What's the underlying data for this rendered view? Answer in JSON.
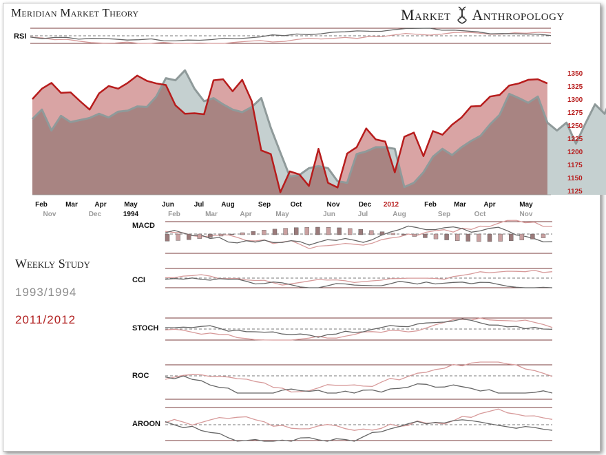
{
  "header": {
    "title": "Meridian Market Theory",
    "brand_left": "Market",
    "brand_right": "Anthropology"
  },
  "legend": {
    "title": "Weekly Study",
    "series_a": "1993/1994",
    "series_b": "2011/2012"
  },
  "colors": {
    "red": "#b71c1c",
    "red_fill": "#d9a4a4",
    "gray": "#8f9a9a",
    "gray_fill": "#c5d0d0",
    "dark_fill": "#a88482"
  },
  "chart_data": {
    "type": "area",
    "title": "Meridian Market Theory",
    "ylim": [
      1110,
      1365
    ],
    "y_ticks": [
      1125,
      1150,
      1175,
      1200,
      1225,
      1250,
      1275,
      1300,
      1325,
      1350
    ],
    "x_labels_2012": [
      "Feb",
      "Mar",
      "Apr",
      "May",
      "Jun",
      "Jul",
      "Aug",
      "Sep",
      "Oct",
      "Nov",
      "Dec",
      "2012",
      "Feb",
      "Mar",
      "Apr",
      "May"
    ],
    "x_labels_1994": [
      "Nov",
      "Dec",
      "1994",
      "Feb",
      "Mar",
      "Apr",
      "May",
      "Jun",
      "Jul",
      "Aug",
      "Sep",
      "Oct",
      "Nov"
    ],
    "series": [
      {
        "name": "2011/2012",
        "values": [
          1300,
          1320,
          1331,
          1312,
          1313,
          1296,
          1280,
          1311,
          1325,
          1320,
          1331,
          1345,
          1335,
          1330,
          1327,
          1288,
          1272,
          1273,
          1271,
          1336,
          1338,
          1315,
          1337,
          1296,
          1202,
          1195,
          1122,
          1162,
          1156,
          1134,
          1205,
          1140,
          1131,
          1196,
          1208,
          1244,
          1223,
          1219,
          1160,
          1228,
          1236,
          1191,
          1239,
          1232,
          1251,
          1265,
          1286,
          1287,
          1305,
          1308,
          1326,
          1330,
          1337,
          1338,
          1330
        ]
      },
      {
        "name": "1993/1994",
        "values": [
          1262,
          1280,
          1240,
          1268,
          1256,
          1260,
          1264,
          1272,
          1265,
          1276,
          1278,
          1286,
          1285,
          1305,
          1340,
          1336,
          1355,
          1320,
          1296,
          1302,
          1290,
          1280,
          1275,
          1285,
          1302,
          1245,
          1198,
          1152,
          1155,
          1168,
          1172,
          1168,
          1143,
          1140,
          1195,
          1200,
          1208,
          1208,
          1205,
          1132,
          1140,
          1160,
          1190,
          1205,
          1193,
          1208,
          1220,
          1230,
          1252,
          1270,
          1310,
          1302,
          1293,
          1305,
          1255,
          1240,
          1255,
          1215,
          1254,
          1290,
          1272,
          1318,
          1270,
          1258,
          1258,
          1255,
          1190,
          1168
        ]
      }
    ],
    "indicators": [
      "RSI",
      "MACD",
      "CCI",
      "STOCH",
      "ROC",
      "AROON"
    ]
  }
}
